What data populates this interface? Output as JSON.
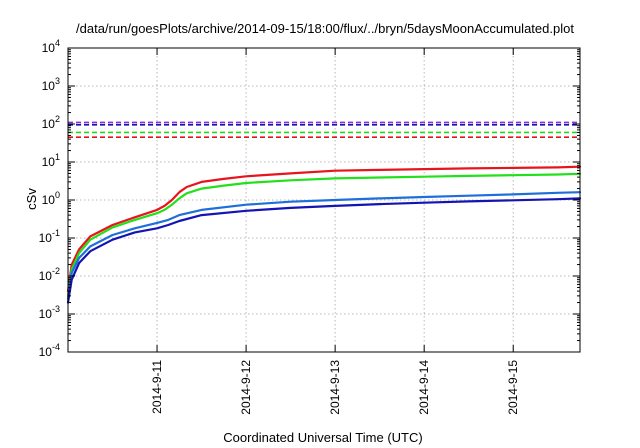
{
  "chart_data": {
    "type": "line",
    "title": "/data/run/goesPlots/archive/2014-09-15/18:00/flux/../bryn/5daysMoonAccumulated.plot",
    "xlabel": "Coordinated Universal Time (UTC)",
    "ylabel": "cSv",
    "y_scale": "log",
    "ylim_exponents": [
      -4,
      4
    ],
    "y_tick_labels": [
      {
        "base": "10",
        "exp": "-4"
      },
      {
        "base": "10",
        "exp": "-3"
      },
      {
        "base": "10",
        "exp": "-2"
      },
      {
        "base": "10",
        "exp": "-1"
      },
      {
        "base": "10",
        "exp": "0"
      },
      {
        "base": "10",
        "exp": "1"
      },
      {
        "base": "10",
        "exp": "2"
      },
      {
        "base": "10",
        "exp": "3"
      },
      {
        "base": "10",
        "exp": "4"
      }
    ],
    "xlim": [
      "2014-09-10 00:00",
      "2014-09-15 18:00"
    ],
    "x_ticks": [
      "2014-9-11",
      "2014-9-12",
      "2014-9-13",
      "2014-9-14",
      "2014-9-15"
    ],
    "grid": true,
    "series": [
      {
        "color": "#e8141b",
        "style": "solid",
        "x": [
          "2014-09-10 00:00",
          "2014-09-10 01:00",
          "2014-09-10 03:00",
          "2014-09-10 06:00",
          "2014-09-10 12:00",
          "2014-09-10 18:00",
          "2014-09-11 00:00",
          "2014-09-11 02:00",
          "2014-09-11 04:00",
          "2014-09-11 06:00",
          "2014-09-11 08:00",
          "2014-09-11 12:00",
          "2014-09-11 18:00",
          "2014-09-12 00:00",
          "2014-09-12 12:00",
          "2014-09-13 00:00",
          "2014-09-13 12:00",
          "2014-09-14 00:00",
          "2014-09-14 12:00",
          "2014-09-15 00:00",
          "2014-09-15 12:00",
          "2014-09-15 18:00"
        ],
        "y": [
          0.004,
          0.02,
          0.05,
          0.11,
          0.22,
          0.35,
          0.55,
          0.7,
          1.0,
          1.6,
          2.2,
          3.0,
          3.6,
          4.2,
          5.0,
          5.9,
          6.2,
          6.5,
          6.8,
          7.0,
          7.2,
          7.5
        ]
      },
      {
        "color": "#22e01a",
        "style": "solid",
        "x": [
          "2014-09-10 00:00",
          "2014-09-10 01:00",
          "2014-09-10 03:00",
          "2014-09-10 06:00",
          "2014-09-10 12:00",
          "2014-09-10 18:00",
          "2014-09-11 00:00",
          "2014-09-11 02:00",
          "2014-09-11 04:00",
          "2014-09-11 06:00",
          "2014-09-11 08:00",
          "2014-09-11 12:00",
          "2014-09-11 18:00",
          "2014-09-12 00:00",
          "2014-09-12 12:00",
          "2014-09-13 00:00",
          "2014-09-13 12:00",
          "2014-09-14 00:00",
          "2014-09-14 12:00",
          "2014-09-15 00:00",
          "2014-09-15 12:00",
          "2014-09-15 18:00"
        ],
        "y": [
          0.003,
          0.015,
          0.04,
          0.09,
          0.19,
          0.3,
          0.45,
          0.55,
          0.75,
          1.1,
          1.5,
          2.0,
          2.4,
          2.8,
          3.3,
          3.7,
          3.9,
          4.1,
          4.3,
          4.5,
          4.7,
          4.9
        ]
      },
      {
        "color": "#1e6fdc",
        "style": "solid",
        "x": [
          "2014-09-10 00:00",
          "2014-09-10 01:00",
          "2014-09-10 03:00",
          "2014-09-10 06:00",
          "2014-09-10 12:00",
          "2014-09-10 18:00",
          "2014-09-11 00:00",
          "2014-09-11 03:00",
          "2014-09-11 06:00",
          "2014-09-11 12:00",
          "2014-09-12 00:00",
          "2014-09-12 12:00",
          "2014-09-13 00:00",
          "2014-09-13 12:00",
          "2014-09-14 00:00",
          "2014-09-14 12:00",
          "2014-09-15 00:00",
          "2014-09-15 12:00",
          "2014-09-15 18:00"
        ],
        "y": [
          0.0025,
          0.012,
          0.03,
          0.06,
          0.12,
          0.18,
          0.25,
          0.3,
          0.4,
          0.55,
          0.75,
          0.9,
          1.0,
          1.1,
          1.2,
          1.3,
          1.4,
          1.55,
          1.6
        ]
      },
      {
        "color": "#1414b4",
        "style": "solid",
        "x": [
          "2014-09-10 00:00",
          "2014-09-10 01:00",
          "2014-09-10 03:00",
          "2014-09-10 06:00",
          "2014-09-10 12:00",
          "2014-09-10 18:00",
          "2014-09-11 00:00",
          "2014-09-11 03:00",
          "2014-09-11 06:00",
          "2014-09-11 12:00",
          "2014-09-12 00:00",
          "2014-09-12 12:00",
          "2014-09-13 00:00",
          "2014-09-13 12:00",
          "2014-09-14 00:00",
          "2014-09-14 12:00",
          "2014-09-15 00:00",
          "2014-09-15 12:00",
          "2014-09-15 18:00"
        ],
        "y": [
          0.002,
          0.008,
          0.022,
          0.045,
          0.09,
          0.14,
          0.18,
          0.22,
          0.28,
          0.4,
          0.52,
          0.62,
          0.7,
          0.78,
          0.85,
          0.92,
          0.98,
          1.05,
          1.1
        ]
      },
      {
        "color": "#e8141b",
        "style": "dashed",
        "constant": 45
      },
      {
        "color": "#22e01a",
        "style": "dashed",
        "constant": 60
      },
      {
        "color": "#1414b4",
        "style": "dashed",
        "constant": 95
      },
      {
        "color": "#8a2be2",
        "style": "dashed",
        "constant": 110
      }
    ]
  }
}
